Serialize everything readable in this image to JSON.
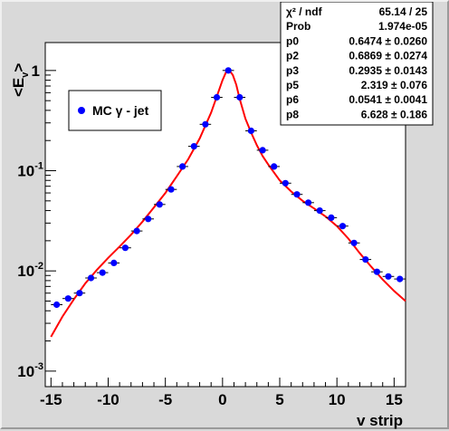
{
  "chart_data": {
    "type": "scatter",
    "xlabel": "v strip",
    "ylabel_main": "<E",
    "ylabel_sub": "v",
    "ylabel_close": ">",
    "xlim": [
      -15.5,
      16
    ],
    "ylim": [
      0.0007,
      1.9
    ],
    "yscale": "log",
    "x_ticks": [
      {
        "v": -15,
        "label": "-15"
      },
      {
        "v": -10,
        "label": "-10"
      },
      {
        "v": -5,
        "label": "-5"
      },
      {
        "v": 0,
        "label": "0"
      },
      {
        "v": 5,
        "label": "5"
      },
      {
        "v": 10,
        "label": "10"
      },
      {
        "v": 15,
        "label": "15"
      }
    ],
    "y_ticks": [
      {
        "v": 1,
        "base": "1",
        "exp": ""
      },
      {
        "v": 0.1,
        "base": "10",
        "exp": "-1"
      },
      {
        "v": 0.01,
        "base": "10",
        "exp": "-2"
      },
      {
        "v": 0.001,
        "base": "10",
        "exp": "-3"
      }
    ],
    "grid": false,
    "legend": {
      "position": "upper-left",
      "entries": [
        {
          "label": "MC γ - jet",
          "color": "#0000ff"
        }
      ]
    },
    "series": [
      {
        "name": "MC γ - jet",
        "color": "#0000ff",
        "x": [
          -14.5,
          -13.5,
          -12.5,
          -11.5,
          -10.5,
          -9.5,
          -8.5,
          -7.5,
          -6.5,
          -5.5,
          -4.5,
          -3.5,
          -2.5,
          -1.5,
          -0.5,
          0.5,
          1.5,
          2.5,
          3.5,
          4.5,
          5.5,
          6.5,
          7.5,
          8.5,
          9.5,
          10.5,
          11.5,
          12.5,
          13.5,
          14.5,
          15.5
        ],
        "y": [
          0.0046,
          0.0053,
          0.006,
          0.0085,
          0.0096,
          0.012,
          0.017,
          0.025,
          0.033,
          0.046,
          0.065,
          0.11,
          0.175,
          0.29,
          0.54,
          1.0,
          0.54,
          0.25,
          0.16,
          0.11,
          0.075,
          0.058,
          0.048,
          0.04,
          0.034,
          0.028,
          0.019,
          0.013,
          0.0098,
          0.0088,
          0.0083
        ]
      }
    ],
    "fit": {
      "color": "#ff0000",
      "x": [
        -15,
        -14,
        -13,
        -12,
        -11,
        -10,
        -9,
        -8,
        -7,
        -6,
        -5,
        -4,
        -3,
        -2,
        -1,
        -0.5,
        0,
        0.3,
        0.6,
        0.9,
        1.2,
        1.5,
        2,
        2.5,
        3,
        3.5,
        4,
        5,
        6,
        7,
        8,
        9,
        10,
        11,
        12,
        13,
        14,
        15,
        16
      ],
      "y": [
        0.0022,
        0.0035,
        0.0052,
        0.0075,
        0.0102,
        0.0135,
        0.0175,
        0.023,
        0.031,
        0.043,
        0.06,
        0.088,
        0.13,
        0.21,
        0.38,
        0.55,
        0.8,
        0.96,
        1.0,
        0.9,
        0.72,
        0.52,
        0.33,
        0.24,
        0.18,
        0.14,
        0.115,
        0.08,
        0.062,
        0.05,
        0.042,
        0.035,
        0.028,
        0.021,
        0.015,
        0.011,
        0.0082,
        0.0063,
        0.005
      ]
    },
    "stats": [
      {
        "label": "χ² / ndf",
        "value": "65.14 / 25"
      },
      {
        "label": "Prob",
        "value": "1.974e-05"
      },
      {
        "label": "p0",
        "value": "0.6474 ± 0.0260"
      },
      {
        "label": "p2",
        "value": "0.6869 ± 0.0274"
      },
      {
        "label": "p3",
        "value": "0.2935 ± 0.0143"
      },
      {
        "label": "p5",
        "value": "2.319 ± 0.076"
      },
      {
        "label": "p6",
        "value": "0.0541 ± 0.0041"
      },
      {
        "label": "p8",
        "value": "6.628 ± 0.186"
      }
    ]
  }
}
